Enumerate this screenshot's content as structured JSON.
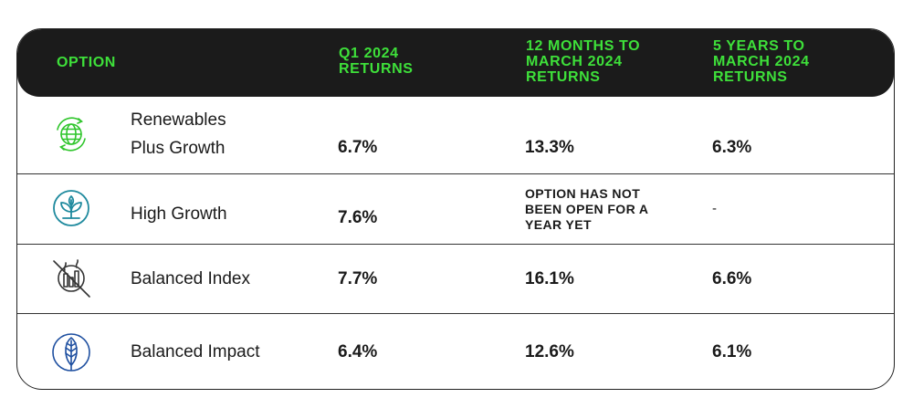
{
  "header": {
    "col_option": "OPTION",
    "col_q1": "Q1 2024\nRETURNS",
    "col_12m": "12 MONTHS TO\nMARCH 2024\nRETURNS",
    "col_5y": "5 YEARS TO\nMARCH 2024\nRETURNS"
  },
  "colors": {
    "header_bg": "#1b1b1b",
    "header_text": "#3ee03a",
    "renewables_icon": "#2ec52a",
    "high_growth_icon": "#1f8a9e",
    "balanced_index_icon": "#333333",
    "balanced_impact_icon": "#1e4fa0"
  },
  "rows": [
    {
      "icon": "globe-recycle-icon",
      "name": "Renewables\nPlus Growth",
      "q1": "6.7%",
      "m12": "13.3%",
      "y5": "6.3%"
    },
    {
      "icon": "sprout-icon",
      "name": "High Growth",
      "q1": "7.6%",
      "m12": "OPTION HAS NOT\nBEEN OPEN FOR A\nYEAR YET",
      "y5": "-"
    },
    {
      "icon": "crossed-out-factory-icon",
      "name": "Balanced Index",
      "q1": "7.7%",
      "m12": "16.1%",
      "y5": "6.6%"
    },
    {
      "icon": "leaf-icon",
      "name": "Balanced Impact",
      "q1": "6.4%",
      "m12": "12.6%",
      "y5": "6.1%"
    }
  ]
}
